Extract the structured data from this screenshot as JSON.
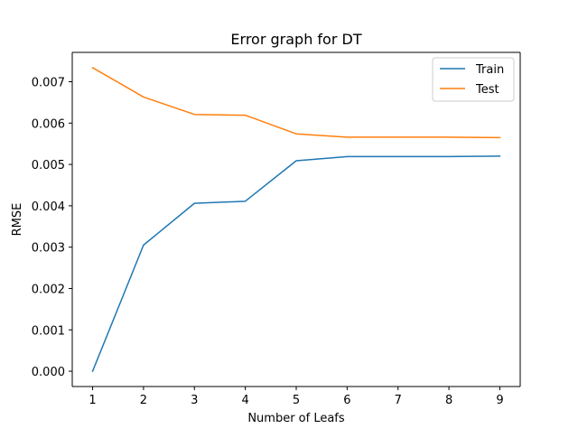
{
  "chart_data": {
    "type": "line",
    "title": "Error graph for DT",
    "xlabel": "Number of Leafs",
    "ylabel": "RMSE",
    "x": [
      1,
      2,
      3,
      4,
      5,
      6,
      7,
      8,
      9
    ],
    "series": [
      {
        "name": "Train",
        "color": "#1f77b4",
        "values": [
          0.0,
          0.00305,
          0.00406,
          0.00411,
          0.00509,
          0.00519,
          0.00519,
          0.00519,
          0.0052
        ]
      },
      {
        "name": "Test",
        "color": "#ff7f0e",
        "values": [
          0.00734,
          0.00663,
          0.00621,
          0.00619,
          0.00574,
          0.00566,
          0.00566,
          0.00566,
          0.00565
        ]
      }
    ],
    "xlim": [
      0.6,
      9.4
    ],
    "ylim": [
      -0.00037,
      0.00771
    ],
    "xticks": [
      1,
      2,
      3,
      4,
      5,
      6,
      7,
      8,
      9
    ],
    "yticks": [
      0.0,
      0.001,
      0.002,
      0.003,
      0.004,
      0.005,
      0.006,
      0.007
    ],
    "ytick_labels": [
      "0.000",
      "0.001",
      "0.002",
      "0.003",
      "0.004",
      "0.005",
      "0.006",
      "0.007"
    ],
    "grid": false,
    "legend_position": "top-right"
  }
}
